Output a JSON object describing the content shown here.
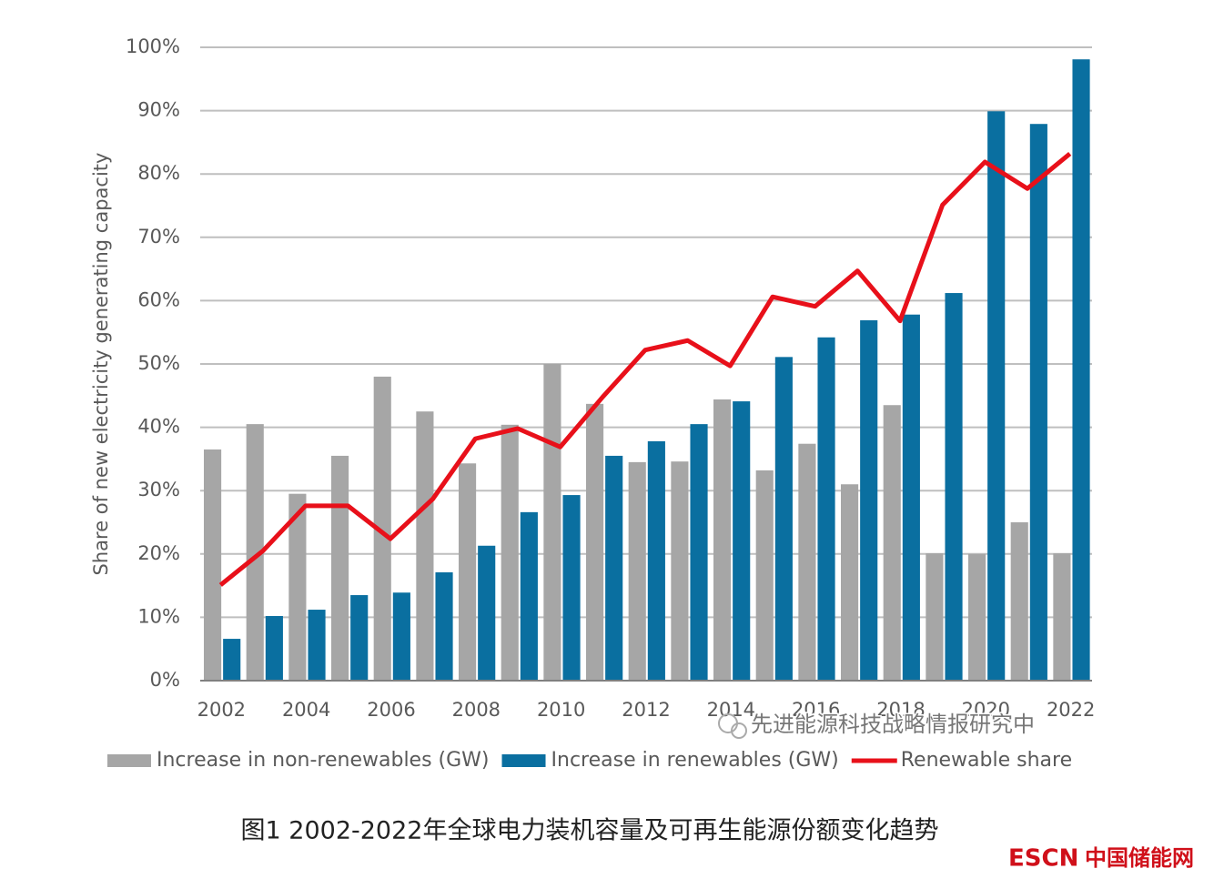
{
  "chart_data": {
    "type": "bar",
    "y_label": "Share of new electricity generating capacity",
    "categories": [
      "2002",
      null,
      "2004",
      null,
      "2006",
      null,
      "2008",
      null,
      "2010",
      null,
      "2012",
      null,
      "2014",
      null,
      "2016",
      null,
      "2018",
      null,
      "2020",
      null,
      "2022"
    ],
    "series": [
      {
        "name": "Increase in non-renewables (GW)",
        "type": "bar",
        "color": "#a6a6a6",
        "values": [
          36.5,
          40.5,
          29.5,
          35.5,
          48,
          42.5,
          34.3,
          40.4,
          50,
          43.7,
          34.5,
          34.6,
          44.4,
          33.2,
          37.4,
          31,
          43.5,
          20.1,
          20,
          25,
          20.1
        ]
      },
      {
        "name": "Increase in renewables (GW)",
        "type": "bar",
        "color": "#0a6fa0",
        "values": [
          6.6,
          10.2,
          11.2,
          13.5,
          13.9,
          17.1,
          21.3,
          26.6,
          29.3,
          35.5,
          37.8,
          40.5,
          44.1,
          51.1,
          54.2,
          56.9,
          57.8,
          61.2,
          89.9,
          87.9,
          98.1
        ]
      },
      {
        "name": "Renewable share",
        "type": "line",
        "color": "#e8101a",
        "values": [
          15.1,
          20.5,
          27.6,
          27.6,
          22.4,
          28.7,
          38.2,
          39.8,
          36.9,
          44.8,
          52.2,
          53.7,
          49.7,
          60.6,
          59.1,
          64.7,
          56.8,
          75.1,
          81.9,
          77.7,
          83.2
        ]
      }
    ],
    "ylim": [
      0,
      100
    ],
    "yticks": [
      {
        "value": 0,
        "label": "0%"
      },
      {
        "value": 10,
        "label": "10%"
      },
      {
        "value": 20,
        "label": "20%"
      },
      {
        "value": 30,
        "label": "30%"
      },
      {
        "value": 40,
        "label": "40%"
      },
      {
        "value": 50,
        "label": "50%"
      },
      {
        "value": 60,
        "label": "60%"
      },
      {
        "value": 70,
        "label": "70%"
      },
      {
        "value": 80,
        "label": "80%"
      },
      {
        "value": 90,
        "label": "90%"
      },
      {
        "value": 100,
        "label": "100%"
      }
    ],
    "grid": true,
    "legend": "bottom"
  },
  "watermark": "先进能源科技战略情报研究中",
  "caption": "图1 2002-2022年全球电力装机容量及可再生能源份额变化趋势",
  "logo": {
    "brand": "ESCN",
    "name": "中国储能网"
  }
}
